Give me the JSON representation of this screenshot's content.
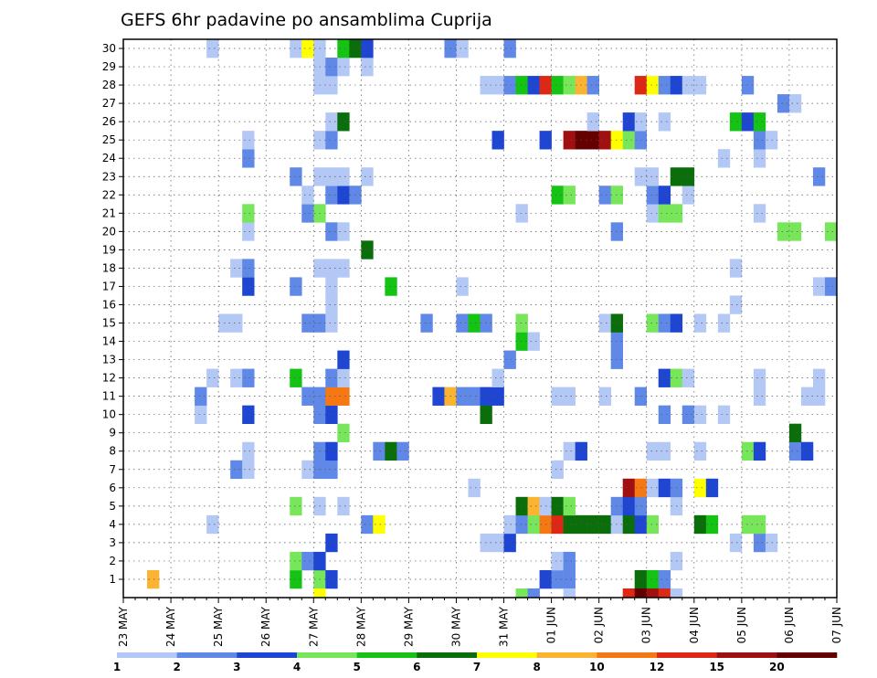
{
  "chart_data": {
    "type": "heatmap",
    "title": "GEFS 6hr padavine po ansamblima Cuprija",
    "xlabel": "",
    "ylabel": "",
    "y_ticks": [
      "1",
      "2",
      "3",
      "4",
      "5",
      "6",
      "7",
      "8",
      "9",
      "10",
      "11",
      "12",
      "13",
      "14",
      "15",
      "16",
      "17",
      "18",
      "19",
      "20",
      "21",
      "22",
      "23",
      "24",
      "25",
      "26",
      "27",
      "28",
      "29",
      "30"
    ],
    "x_ticks": [
      "23 MAY",
      "24 MAY",
      "25 MAY",
      "26 MAY",
      "27 MAY",
      "28 MAY",
      "29 MAY",
      "30 MAY",
      "31 MAY",
      "01 JUN",
      "02 JUN",
      "03 JUN",
      "04 JUN",
      "05 JUN",
      "06 JUN",
      "07 JUN"
    ],
    "time_steps": 60,
    "members": 30,
    "grid": true,
    "colorbar": {
      "ticks": [
        "1",
        "2",
        "3",
        "4",
        "5",
        "6",
        "7",
        "8",
        "10",
        "12",
        "15",
        "20"
      ],
      "colors": [
        "#b4c8f5",
        "#6088e6",
        "#1e46d2",
        "#78e65a",
        "#14c314",
        "#0a6e0a",
        "#ffff00",
        "#fab432",
        "#f57814",
        "#dc2814",
        "#a01010",
        "#640000"
      ],
      "placement": "bottom"
    },
    "cells": [
      [
        1,
        3,
        8
      ],
      [
        1,
        15,
        5
      ],
      [
        1,
        17,
        4
      ],
      [
        1,
        18,
        3
      ],
      [
        1,
        36,
        3
      ],
      [
        1,
        37,
        2
      ],
      [
        1,
        38,
        2
      ],
      [
        1,
        44,
        6
      ],
      [
        1,
        45,
        5
      ],
      [
        1,
        46,
        2
      ],
      [
        2,
        15,
        4
      ],
      [
        2,
        16,
        2
      ],
      [
        2,
        17,
        3
      ],
      [
        2,
        37,
        1
      ],
      [
        2,
        38,
        2
      ],
      [
        2,
        47,
        1
      ],
      [
        3,
        18,
        3
      ],
      [
        3,
        31,
        1
      ],
      [
        3,
        32,
        1
      ],
      [
        3,
        33,
        3
      ],
      [
        3,
        52,
        1
      ],
      [
        3,
        54,
        2
      ],
      [
        3,
        55,
        1
      ],
      [
        4,
        8,
        1
      ],
      [
        4,
        21,
        2
      ],
      [
        4,
        22,
        7
      ],
      [
        4,
        33,
        1
      ],
      [
        4,
        34,
        2
      ],
      [
        4,
        35,
        4
      ],
      [
        4,
        36,
        9
      ],
      [
        4,
        37,
        10
      ],
      [
        4,
        38,
        6
      ],
      [
        4,
        39,
        6
      ],
      [
        4,
        40,
        6
      ],
      [
        4,
        41,
        6
      ],
      [
        4,
        42,
        1
      ],
      [
        4,
        43,
        6
      ],
      [
        4,
        44,
        3
      ],
      [
        4,
        45,
        4
      ],
      [
        4,
        49,
        6
      ],
      [
        4,
        50,
        5
      ],
      [
        4,
        53,
        4
      ],
      [
        4,
        54,
        4
      ],
      [
        5,
        15,
        4
      ],
      [
        5,
        17,
        1
      ],
      [
        5,
        19,
        1
      ],
      [
        5,
        34,
        6
      ],
      [
        5,
        35,
        8
      ],
      [
        5,
        36,
        1
      ],
      [
        5,
        37,
        6
      ],
      [
        5,
        38,
        4
      ],
      [
        5,
        42,
        2
      ],
      [
        5,
        43,
        3
      ],
      [
        5,
        44,
        2
      ],
      [
        5,
        47,
        1
      ],
      [
        6,
        30,
        1
      ],
      [
        6,
        43,
        11
      ],
      [
        6,
        44,
        9
      ],
      [
        6,
        45,
        1
      ],
      [
        6,
        46,
        3
      ],
      [
        6,
        47,
        2
      ],
      [
        6,
        49,
        7
      ],
      [
        6,
        50,
        3
      ],
      [
        7,
        10,
        2
      ],
      [
        7,
        11,
        1
      ],
      [
        7,
        16,
        1
      ],
      [
        7,
        17,
        2
      ],
      [
        7,
        18,
        2
      ],
      [
        7,
        37,
        1
      ],
      [
        8,
        11,
        1
      ],
      [
        8,
        17,
        2
      ],
      [
        8,
        18,
        3
      ],
      [
        8,
        22,
        2
      ],
      [
        8,
        23,
        6
      ],
      [
        8,
        24,
        2
      ],
      [
        8,
        38,
        1
      ],
      [
        8,
        39,
        3
      ],
      [
        8,
        45,
        1
      ],
      [
        8,
        46,
        1
      ],
      [
        8,
        49,
        1
      ],
      [
        8,
        53,
        4
      ],
      [
        8,
        54,
        3
      ],
      [
        8,
        57,
        2
      ],
      [
        8,
        58,
        3
      ],
      [
        9,
        19,
        4
      ],
      [
        9,
        57,
        6
      ],
      [
        10,
        7,
        1
      ],
      [
        10,
        11,
        3
      ],
      [
        10,
        17,
        2
      ],
      [
        10,
        18,
        3
      ],
      [
        10,
        31,
        6
      ],
      [
        10,
        46,
        2
      ],
      [
        10,
        48,
        2
      ],
      [
        10,
        49,
        1
      ],
      [
        10,
        51,
        1
      ],
      [
        11,
        7,
        2
      ],
      [
        11,
        16,
        2
      ],
      [
        11,
        17,
        2
      ],
      [
        11,
        18,
        9
      ],
      [
        11,
        19,
        9
      ],
      [
        11,
        27,
        3
      ],
      [
        11,
        28,
        8
      ],
      [
        11,
        29,
        2
      ],
      [
        11,
        30,
        2
      ],
      [
        11,
        31,
        3
      ],
      [
        11,
        32,
        3
      ],
      [
        11,
        37,
        1
      ],
      [
        11,
        38,
        1
      ],
      [
        11,
        41,
        1
      ],
      [
        11,
        44,
        2
      ],
      [
        11,
        54,
        1
      ],
      [
        11,
        58,
        1
      ],
      [
        11,
        59,
        1
      ],
      [
        12,
        8,
        1
      ],
      [
        12,
        10,
        1
      ],
      [
        12,
        11,
        2
      ],
      [
        12,
        15,
        5
      ],
      [
        12,
        18,
        2
      ],
      [
        12,
        19,
        1
      ],
      [
        12,
        32,
        1
      ],
      [
        12,
        46,
        3
      ],
      [
        12,
        47,
        4
      ],
      [
        12,
        48,
        1
      ],
      [
        12,
        54,
        1
      ],
      [
        12,
        59,
        1
      ],
      [
        13,
        19,
        3
      ],
      [
        13,
        33,
        2
      ],
      [
        13,
        42,
        2
      ],
      [
        14,
        34,
        5
      ],
      [
        14,
        35,
        1
      ],
      [
        14,
        42,
        2
      ],
      [
        15,
        9,
        1
      ],
      [
        15,
        10,
        1
      ],
      [
        15,
        16,
        2
      ],
      [
        15,
        17,
        2
      ],
      [
        15,
        18,
        1
      ],
      [
        15,
        26,
        2
      ],
      [
        15,
        29,
        2
      ],
      [
        15,
        30,
        5
      ],
      [
        15,
        31,
        2
      ],
      [
        15,
        34,
        4
      ],
      [
        15,
        41,
        1
      ],
      [
        15,
        42,
        6
      ],
      [
        15,
        45,
        4
      ],
      [
        15,
        46,
        2
      ],
      [
        15,
        47,
        3
      ],
      [
        15,
        49,
        1
      ],
      [
        15,
        51,
        1
      ],
      [
        16,
        18,
        1
      ],
      [
        16,
        52,
        1
      ],
      [
        17,
        11,
        3
      ],
      [
        17,
        15,
        2
      ],
      [
        17,
        18,
        1
      ],
      [
        17,
        23,
        5
      ],
      [
        17,
        29,
        1
      ],
      [
        17,
        59,
        1
      ],
      [
        17,
        60,
        2
      ],
      [
        18,
        10,
        1
      ],
      [
        18,
        11,
        2
      ],
      [
        18,
        17,
        1
      ],
      [
        18,
        18,
        1
      ],
      [
        18,
        19,
        1
      ],
      [
        18,
        52,
        1
      ],
      [
        19,
        21,
        6
      ],
      [
        20,
        11,
        1
      ],
      [
        20,
        18,
        2
      ],
      [
        20,
        19,
        1
      ],
      [
        20,
        42,
        2
      ],
      [
        20,
        56,
        4
      ],
      [
        20,
        57,
        4
      ],
      [
        20,
        60,
        4
      ],
      [
        21,
        11,
        4
      ],
      [
        21,
        16,
        2
      ],
      [
        21,
        17,
        4
      ],
      [
        21,
        34,
        1
      ],
      [
        21,
        45,
        1
      ],
      [
        21,
        46,
        4
      ],
      [
        21,
        47,
        4
      ],
      [
        21,
        54,
        1
      ],
      [
        22,
        16,
        1
      ],
      [
        22,
        18,
        2
      ],
      [
        22,
        19,
        3
      ],
      [
        22,
        20,
        2
      ],
      [
        22,
        37,
        5
      ],
      [
        22,
        38,
        4
      ],
      [
        22,
        41,
        2
      ],
      [
        22,
        42,
        4
      ],
      [
        22,
        45,
        2
      ],
      [
        22,
        46,
        3
      ],
      [
        22,
        48,
        1
      ],
      [
        23,
        15,
        2
      ],
      [
        23,
        17,
        1
      ],
      [
        23,
        18,
        1
      ],
      [
        23,
        19,
        1
      ],
      [
        23,
        21,
        1
      ],
      [
        23,
        44,
        1
      ],
      [
        23,
        45,
        1
      ],
      [
        23,
        47,
        6
      ],
      [
        23,
        48,
        6
      ],
      [
        23,
        59,
        2
      ],
      [
        24,
        11,
        2
      ],
      [
        24,
        51,
        1
      ],
      [
        24,
        54,
        1
      ],
      [
        25,
        11,
        1
      ],
      [
        25,
        17,
        1
      ],
      [
        25,
        18,
        2
      ],
      [
        25,
        32,
        3
      ],
      [
        25,
        36,
        3
      ],
      [
        25,
        38,
        11
      ],
      [
        25,
        39,
        12
      ],
      [
        25,
        40,
        12
      ],
      [
        25,
        41,
        11
      ],
      [
        25,
        42,
        7
      ],
      [
        25,
        43,
        4
      ],
      [
        25,
        44,
        2
      ],
      [
        25,
        54,
        2
      ],
      [
        25,
        55,
        1
      ],
      [
        26,
        18,
        1
      ],
      [
        26,
        19,
        6
      ],
      [
        26,
        40,
        1
      ],
      [
        26,
        43,
        3
      ],
      [
        26,
        44,
        1
      ],
      [
        26,
        46,
        1
      ],
      [
        26,
        52,
        5
      ],
      [
        26,
        53,
        3
      ],
      [
        26,
        54,
        5
      ],
      [
        27,
        56,
        2
      ],
      [
        27,
        57,
        1
      ],
      [
        28,
        17,
        1
      ],
      [
        28,
        18,
        1
      ],
      [
        28,
        31,
        1
      ],
      [
        28,
        32,
        1
      ],
      [
        28,
        33,
        2
      ],
      [
        28,
        34,
        5
      ],
      [
        28,
        35,
        3
      ],
      [
        28,
        36,
        10
      ],
      [
        28,
        37,
        5
      ],
      [
        28,
        38,
        4
      ],
      [
        28,
        39,
        8
      ],
      [
        28,
        40,
        2
      ],
      [
        28,
        44,
        10
      ],
      [
        28,
        45,
        7
      ],
      [
        28,
        46,
        2
      ],
      [
        28,
        47,
        3
      ],
      [
        28,
        48,
        1
      ],
      [
        28,
        49,
        1
      ],
      [
        28,
        53,
        2
      ],
      [
        29,
        17,
        1
      ],
      [
        29,
        18,
        2
      ],
      [
        29,
        19,
        1
      ],
      [
        29,
        21,
        1
      ],
      [
        30,
        8,
        1
      ],
      [
        30,
        15,
        1
      ],
      [
        30,
        16,
        7
      ],
      [
        30,
        17,
        1
      ],
      [
        30,
        19,
        5
      ],
      [
        30,
        20,
        6
      ],
      [
        30,
        21,
        3
      ],
      [
        30,
        28,
        2
      ],
      [
        30,
        29,
        1
      ],
      [
        30,
        33,
        2
      ],
      [
        0,
        17,
        7
      ],
      [
        0,
        34,
        4
      ],
      [
        0,
        35,
        2
      ],
      [
        0,
        38,
        1
      ],
      [
        0,
        43,
        10
      ],
      [
        0,
        44,
        12
      ],
      [
        0,
        45,
        11
      ],
      [
        0,
        46,
        10
      ],
      [
        0,
        47,
        1
      ]
    ]
  }
}
